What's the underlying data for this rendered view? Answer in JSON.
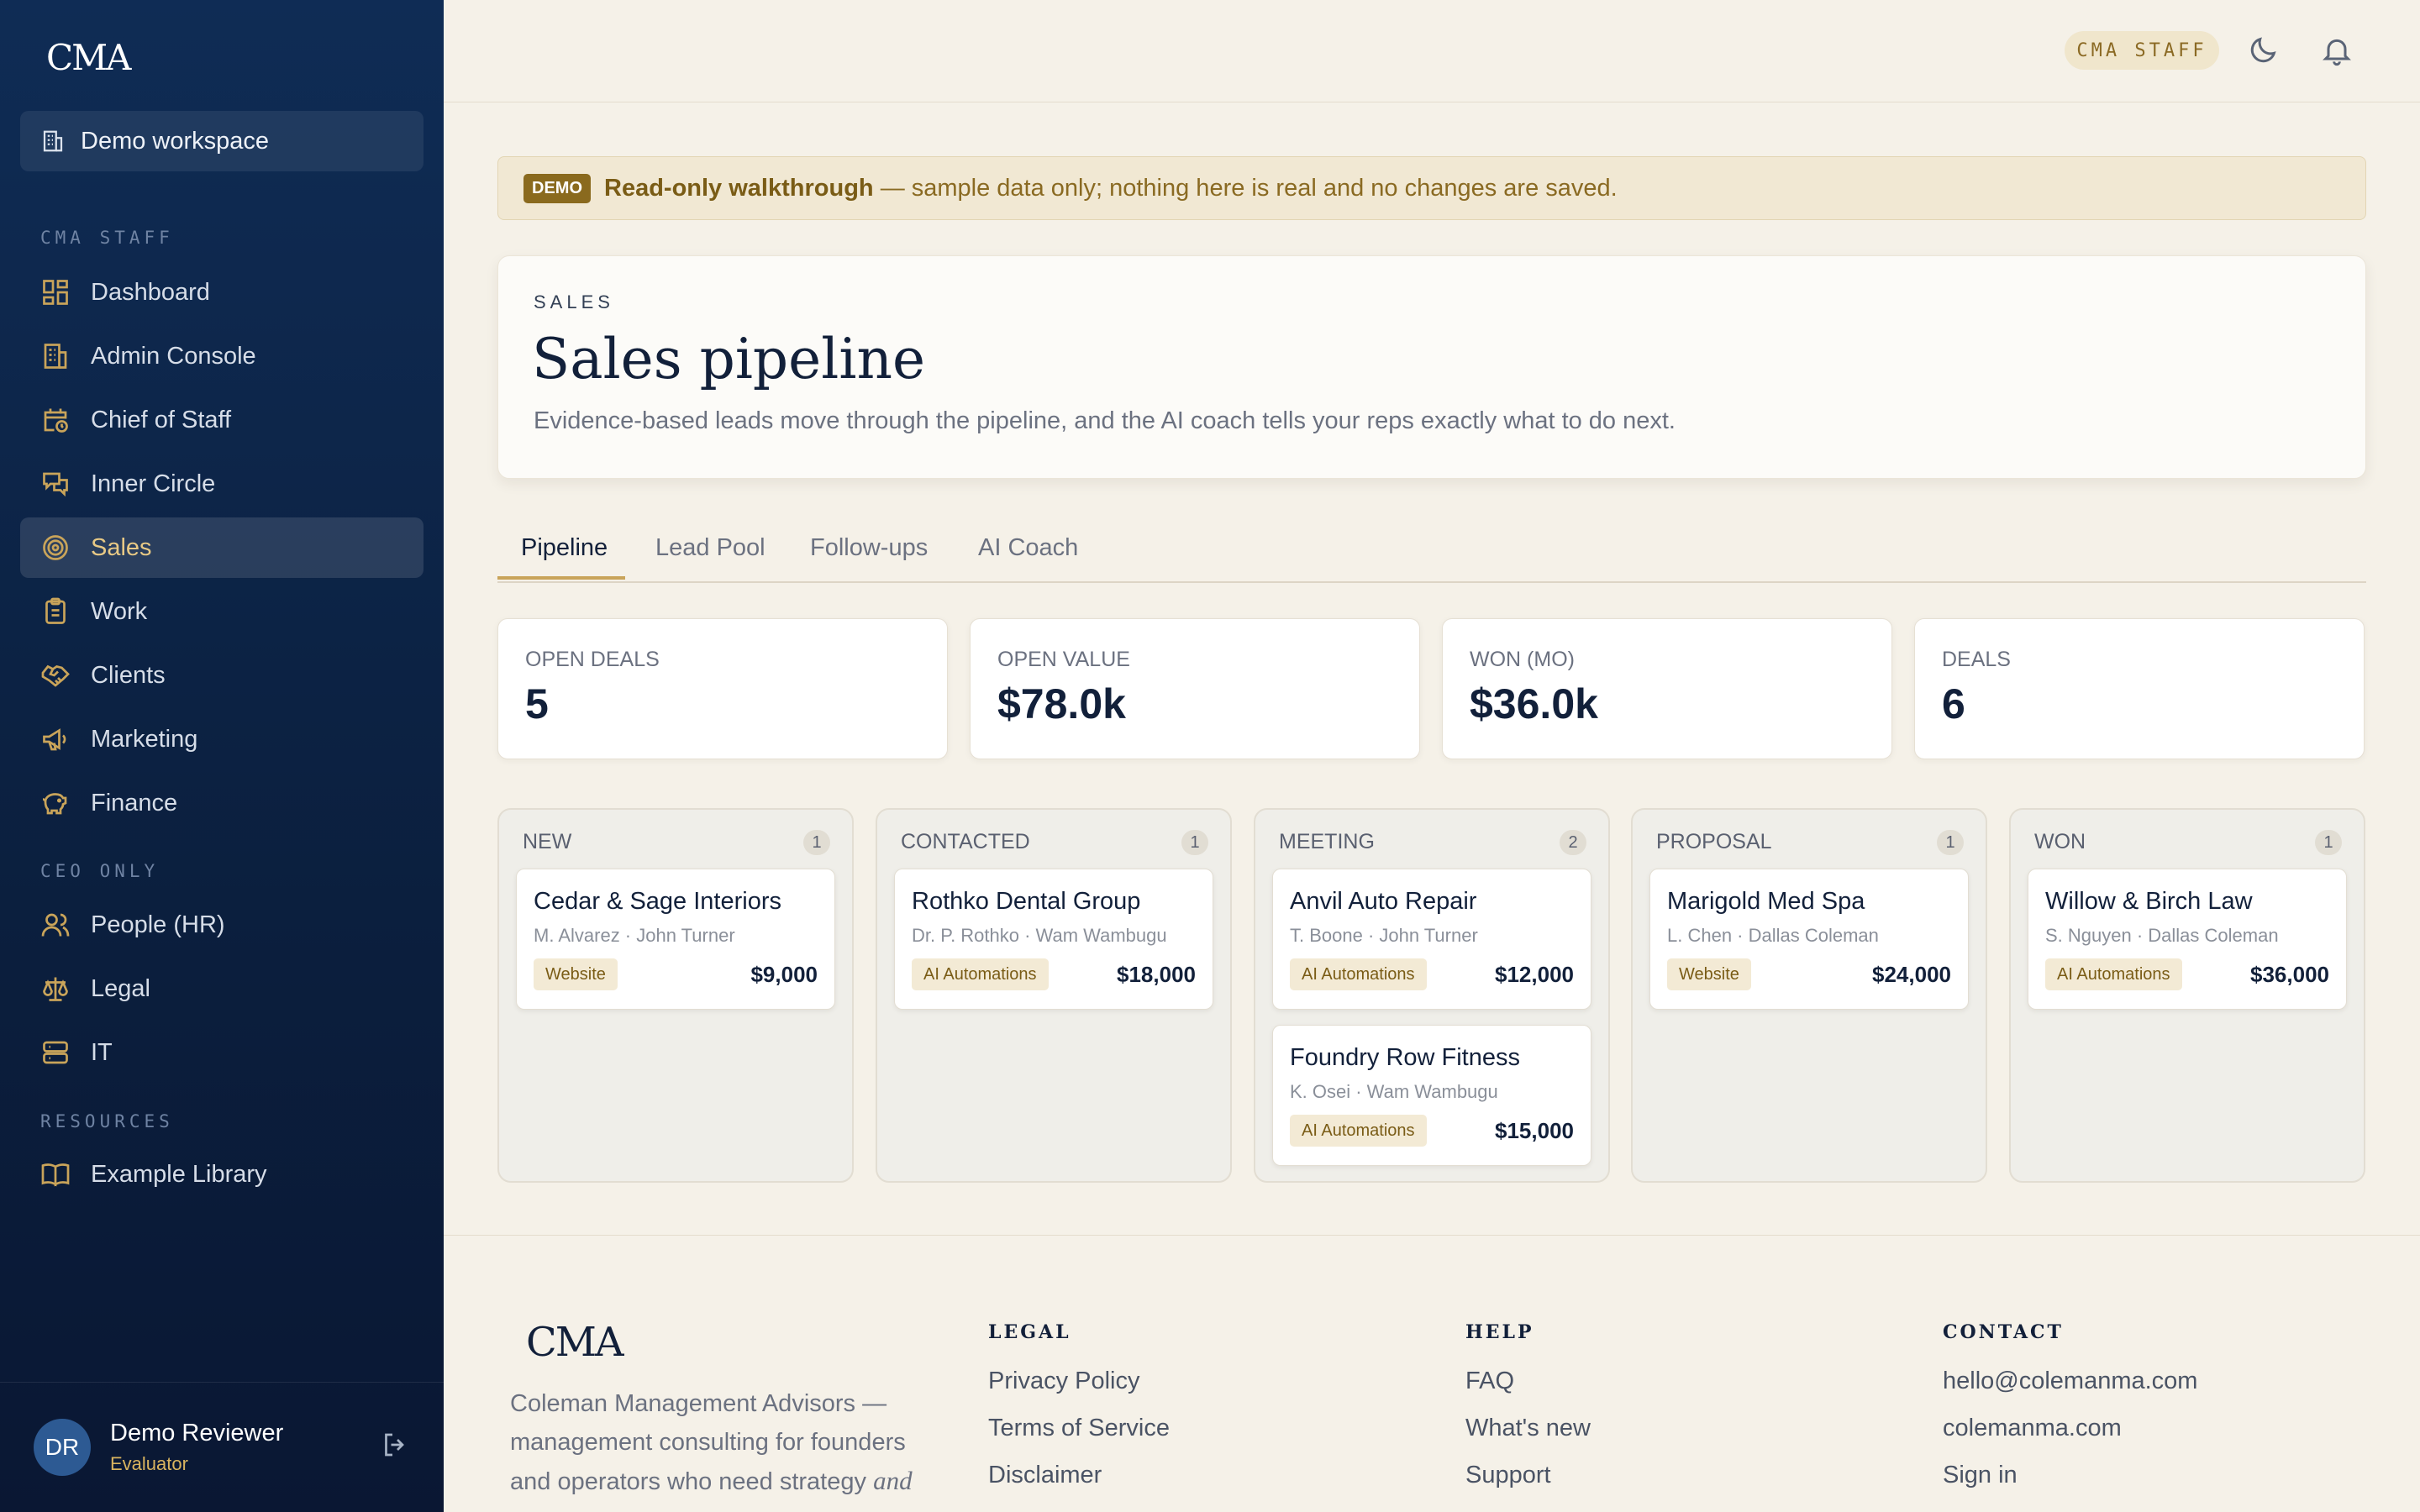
{
  "sidebar": {
    "logo": "CMA",
    "workspace": "Demo workspace",
    "sections": {
      "staff": "CMA STAFF",
      "ceo": "CEO ONLY",
      "resources": "RESOURCES"
    },
    "items": [
      {
        "label": "Dashboard",
        "icon": "dashboard-grid-icon"
      },
      {
        "label": "Admin Console",
        "icon": "building-icon"
      },
      {
        "label": "Chief of Staff",
        "icon": "calendar-clock-icon"
      },
      {
        "label": "Inner Circle",
        "icon": "chat-bubbles-icon"
      },
      {
        "label": "Sales",
        "icon": "target-icon",
        "active": true
      },
      {
        "label": "Work",
        "icon": "clipboard-icon"
      },
      {
        "label": "Clients",
        "icon": "handshake-icon"
      },
      {
        "label": "Marketing",
        "icon": "megaphone-icon"
      },
      {
        "label": "Finance",
        "icon": "piggy-bank-icon"
      },
      {
        "label": "People (HR)",
        "icon": "users-icon"
      },
      {
        "label": "Legal",
        "icon": "scales-icon"
      },
      {
        "label": "IT",
        "icon": "server-icon"
      },
      {
        "label": "Example Library",
        "icon": "book-icon"
      }
    ],
    "user": {
      "initials": "DR",
      "name": "Demo Reviewer",
      "role": "Evaluator"
    }
  },
  "topbar": {
    "staff_pill": "CMA STAFF",
    "icons": [
      "moon-icon",
      "bell-icon"
    ]
  },
  "banner": {
    "tag": "DEMO",
    "bold": "Read-only walkthrough",
    "rest": " — sample data only; nothing here is real and no changes are saved."
  },
  "hero": {
    "eyebrow": "SALES",
    "title": "Sales pipeline",
    "subtitle": "Evidence-based leads move through the pipeline, and the AI coach tells your reps exactly what to do next."
  },
  "tabs": [
    "Pipeline",
    "Lead Pool",
    "Follow-ups",
    "AI Coach"
  ],
  "active_tab": "Pipeline",
  "stats": [
    {
      "label": "OPEN DEALS",
      "value": "5"
    },
    {
      "label": "OPEN VALUE",
      "value": "$78.0k"
    },
    {
      "label": "WON (MO)",
      "value": "$36.0k"
    },
    {
      "label": "DEALS",
      "value": "6"
    }
  ],
  "columns": [
    {
      "title": "NEW",
      "count": "1",
      "cards": [
        {
          "name": "Cedar & Sage Interiors",
          "meta": "M. Alvarez · John Turner",
          "tag": "Website",
          "amount": "$9,000"
        }
      ]
    },
    {
      "title": "CONTACTED",
      "count": "1",
      "cards": [
        {
          "name": "Rothko Dental Group",
          "meta": "Dr. P. Rothko · Wam Wambugu",
          "tag": "AI Automations",
          "amount": "$18,000"
        }
      ]
    },
    {
      "title": "MEETING",
      "count": "2",
      "cards": [
        {
          "name": "Anvil Auto Repair",
          "meta": "T. Boone · John Turner",
          "tag": "AI Automations",
          "amount": "$12,000"
        },
        {
          "name": "Foundry Row Fitness",
          "meta": "K. Osei · Wam Wambugu",
          "tag": "AI Automations",
          "amount": "$15,000"
        }
      ]
    },
    {
      "title": "PROPOSAL",
      "count": "1",
      "cards": [
        {
          "name": "Marigold Med Spa",
          "meta": "L. Chen · Dallas Coleman",
          "tag": "Website",
          "amount": "$24,000"
        }
      ]
    },
    {
      "title": "WON",
      "count": "1",
      "cards": [
        {
          "name": "Willow & Birch Law",
          "meta": "S. Nguyen · Dallas Coleman",
          "tag": "AI Automations",
          "amount": "$36,000"
        }
      ]
    }
  ],
  "footer": {
    "logo": "CMA",
    "blurb_plain": "Coleman Management Advisors — management consulting for founders and operators who need strategy ",
    "blurb_italic": "and",
    "columns": [
      {
        "heading": "LEGAL",
        "links": [
          "Privacy Policy",
          "Terms of Service",
          "Disclaimer"
        ]
      },
      {
        "heading": "HELP",
        "links": [
          "FAQ",
          "What's new",
          "Support"
        ]
      },
      {
        "heading": "CONTACT",
        "links": [
          "hello@colemanma.com",
          "colemanma.com",
          "Sign in"
        ]
      }
    ]
  },
  "colors": {
    "navy": "#0f2c55",
    "gold": "#c9a45a",
    "cream": "#f5f1e8"
  }
}
